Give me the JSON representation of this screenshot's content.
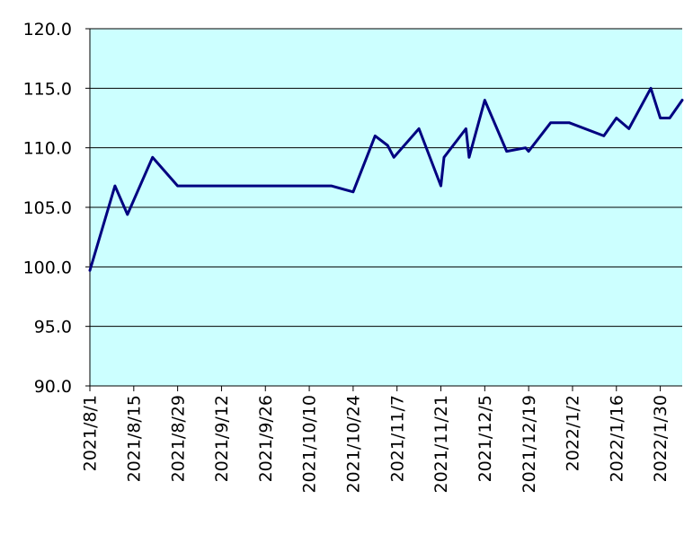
{
  "colors": {
    "plot_background": "#ccffff",
    "line": "#000080",
    "grid": "#000000",
    "axis": "#000000"
  },
  "chart_data": {
    "type": "line",
    "title": "",
    "xlabel": "",
    "ylabel": "",
    "grid": "horizontal",
    "legend": "none",
    "ylim": [
      90,
      120
    ],
    "xlim": [
      "2021-08-01",
      "2022-02-06"
    ],
    "y_ticks": [
      "90.0",
      "95.0",
      "100.0",
      "105.0",
      "110.0",
      "115.0",
      "120.0"
    ],
    "x_ticks": [
      {
        "date": "2021-08-01",
        "label": "2021/8/1"
      },
      {
        "date": "2021-08-15",
        "label": "2021/8/15"
      },
      {
        "date": "2021-08-29",
        "label": "2021/8/29"
      },
      {
        "date": "2021-09-12",
        "label": "2021/9/12"
      },
      {
        "date": "2021-09-26",
        "label": "2021/9/26"
      },
      {
        "date": "2021-10-10",
        "label": "2021/10/10"
      },
      {
        "date": "2021-10-24",
        "label": "2021/10/24"
      },
      {
        "date": "2021-11-07",
        "label": "2021/11/7"
      },
      {
        "date": "2021-11-21",
        "label": "2021/11/21"
      },
      {
        "date": "2021-12-05",
        "label": "2021/12/5"
      },
      {
        "date": "2021-12-19",
        "label": "2021/12/19"
      },
      {
        "date": "2022-01-02",
        "label": "2022/1/2"
      },
      {
        "date": "2022-01-16",
        "label": "2022/1/16"
      },
      {
        "date": "2022-01-30",
        "label": "2022/1/30"
      }
    ],
    "series": [
      {
        "points": [
          [
            "2021-08-01",
            99.7
          ],
          [
            "2021-08-09",
            106.8
          ],
          [
            "2021-08-13",
            104.4
          ],
          [
            "2021-08-21",
            109.2
          ],
          [
            "2021-08-29",
            106.8
          ],
          [
            "2021-10-17",
            106.8
          ],
          [
            "2021-10-24",
            106.3
          ],
          [
            "2021-10-31",
            111.0
          ],
          [
            "2021-11-04",
            110.2
          ],
          [
            "2021-11-06",
            109.2
          ],
          [
            "2021-11-14",
            111.6
          ],
          [
            "2021-11-21",
            106.8
          ],
          [
            "2021-11-22",
            109.2
          ],
          [
            "2021-11-29",
            111.6
          ],
          [
            "2021-11-30",
            109.2
          ],
          [
            "2021-12-05",
            114.0
          ],
          [
            "2021-12-12",
            109.7
          ],
          [
            "2021-12-18",
            110.0
          ],
          [
            "2021-12-19",
            109.7
          ],
          [
            "2021-12-26",
            112.1
          ],
          [
            "2022-01-01",
            112.1
          ],
          [
            "2022-01-12",
            111.0
          ],
          [
            "2022-01-16",
            112.5
          ],
          [
            "2022-01-20",
            111.6
          ],
          [
            "2022-01-27",
            115.0
          ],
          [
            "2022-01-30",
            112.5
          ],
          [
            "2022-02-02",
            112.5
          ],
          [
            "2022-02-06",
            114.0
          ]
        ]
      }
    ]
  }
}
